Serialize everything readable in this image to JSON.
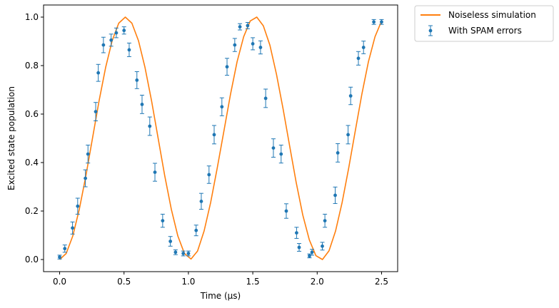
{
  "chart_data": {
    "type": "line",
    "xlabel": "Time (μs)",
    "ylabel": "Excited state population",
    "xlim": [
      -0.125,
      2.625
    ],
    "ylim": [
      -0.05,
      1.05
    ],
    "xticks": [
      0.0,
      0.5,
      1.0,
      1.5,
      2.0,
      2.5
    ],
    "xtick_labels": [
      "0.0",
      "0.5",
      "1.0",
      "1.5",
      "2.0",
      "2.5"
    ],
    "yticks": [
      0.0,
      0.2,
      0.4,
      0.6,
      0.8,
      1.0
    ],
    "ytick_labels": [
      "0.0",
      "0.2",
      "0.4",
      "0.6",
      "0.8",
      "1.0"
    ],
    "grid": false,
    "legend_position": "outside-top-right",
    "legend": [
      {
        "label": "Noiseless simulation",
        "kind": "line",
        "color": "#ff7f0e"
      },
      {
        "label": "With SPAM errors",
        "kind": "errorbar",
        "color": "#1f77b4"
      }
    ],
    "series": [
      {
        "name": "Noiseless simulation",
        "kind": "line",
        "color": "#ff7f0e",
        "x": [
          0.0,
          0.051,
          0.102,
          0.153,
          0.204,
          0.255,
          0.306,
          0.357,
          0.408,
          0.459,
          0.51,
          0.561,
          0.612,
          0.663,
          0.714,
          0.765,
          0.816,
          0.867,
          0.918,
          0.969,
          1.02,
          1.071,
          1.122,
          1.173,
          1.224,
          1.276,
          1.327,
          1.378,
          1.429,
          1.48,
          1.531,
          1.582,
          1.633,
          1.684,
          1.735,
          1.786,
          1.837,
          1.888,
          1.939,
          1.99,
          2.041,
          2.092,
          2.143,
          2.194,
          2.245,
          2.296,
          2.347,
          2.398,
          2.449,
          2.5
        ],
        "y": [
          0.0,
          0.025,
          0.097,
          0.208,
          0.346,
          0.5,
          0.654,
          0.792,
          0.903,
          0.975,
          1.0,
          0.975,
          0.903,
          0.792,
          0.654,
          0.5,
          0.346,
          0.208,
          0.097,
          0.025,
          0.002,
          0.035,
          0.118,
          0.236,
          0.378,
          0.531,
          0.682,
          0.816,
          0.919,
          0.984,
          1.0,
          0.964,
          0.884,
          0.764,
          0.622,
          0.469,
          0.318,
          0.184,
          0.081,
          0.016,
          0.0,
          0.036,
          0.118,
          0.236,
          0.378,
          0.531,
          0.682,
          0.816,
          0.919,
          0.984
        ]
      },
      {
        "name": "With SPAM errors",
        "kind": "errorbar",
        "color": "#1f77b4",
        "x": [
          0.0,
          0.04,
          0.1,
          0.14,
          0.2,
          0.22,
          0.28,
          0.3,
          0.34,
          0.4,
          0.44,
          0.5,
          0.54,
          0.6,
          0.64,
          0.7,
          0.74,
          0.8,
          0.86,
          0.9,
          0.96,
          1.0,
          1.06,
          1.1,
          1.16,
          1.2,
          1.26,
          1.3,
          1.36,
          1.4,
          1.46,
          1.5,
          1.56,
          1.6,
          1.66,
          1.72,
          1.76,
          1.84,
          1.86,
          1.94,
          1.96,
          2.04,
          2.06,
          2.14,
          2.16,
          2.24,
          2.26,
          2.32,
          2.36,
          2.44,
          2.5
        ],
        "y": [
          0.01,
          0.045,
          0.13,
          0.22,
          0.335,
          0.435,
          0.61,
          0.77,
          0.885,
          0.905,
          0.935,
          0.945,
          0.865,
          0.74,
          0.64,
          0.55,
          0.36,
          0.16,
          0.075,
          0.03,
          0.025,
          0.025,
          0.12,
          0.24,
          0.35,
          0.515,
          0.63,
          0.795,
          0.885,
          0.96,
          0.965,
          0.89,
          0.875,
          0.665,
          0.46,
          0.435,
          0.2,
          0.11,
          0.05,
          0.015,
          0.03,
          0.055,
          0.16,
          0.265,
          0.44,
          0.515,
          0.675,
          0.83,
          0.875,
          0.98,
          0.98
        ],
        "yerr": [
          0.008,
          0.015,
          0.025,
          0.033,
          0.035,
          0.037,
          0.038,
          0.035,
          0.032,
          0.025,
          0.02,
          0.015,
          0.028,
          0.035,
          0.038,
          0.038,
          0.037,
          0.027,
          0.02,
          0.01,
          0.01,
          0.01,
          0.022,
          0.033,
          0.036,
          0.038,
          0.037,
          0.035,
          0.027,
          0.013,
          0.013,
          0.025,
          0.027,
          0.038,
          0.038,
          0.037,
          0.03,
          0.023,
          0.016,
          0.008,
          0.012,
          0.016,
          0.027,
          0.034,
          0.038,
          0.038,
          0.036,
          0.028,
          0.026,
          0.01,
          0.01
        ]
      }
    ]
  }
}
